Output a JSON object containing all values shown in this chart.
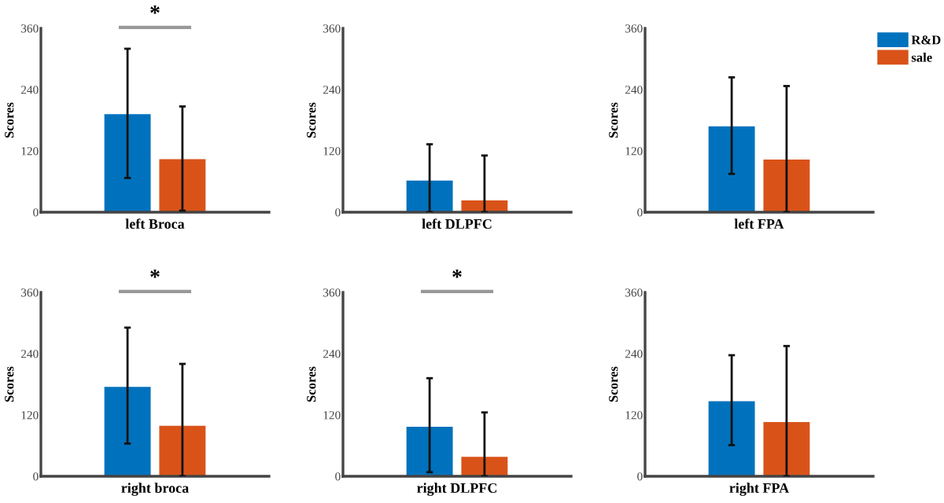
{
  "chart_data": [
    {
      "type": "bar",
      "categories": [
        "left Broca"
      ],
      "ylabel": "Scores",
      "ylim": [
        0,
        360
      ],
      "yticks": [
        0,
        120,
        240,
        360
      ],
      "annotations": [
        "*"
      ],
      "legend": false,
      "series": [
        {
          "color": "#0072bd",
          "values": [
            192
          ],
          "errors": [
            [
              67,
              320
            ]
          ]
        },
        {
          "color": "#d95319",
          "values": [
            104
          ],
          "errors": [
            [
              3,
              207
            ]
          ]
        }
      ]
    },
    {
      "type": "bar",
      "categories": [
        "left DLPFC"
      ],
      "ylabel": "Scores",
      "ylim": [
        0,
        360
      ],
      "yticks": [
        0,
        120,
        240,
        360
      ],
      "legend": false,
      "series": [
        {
          "color": "#0072bd",
          "values": [
            62
          ],
          "errors": [
            [
              0,
              133
            ]
          ]
        },
        {
          "color": "#d95319",
          "values": [
            23
          ],
          "errors": [
            [
              0,
              111
            ]
          ]
        }
      ]
    },
    {
      "type": "bar",
      "categories": [
        "left FPA"
      ],
      "ylabel": "Scores",
      "ylim": [
        0,
        360
      ],
      "yticks": [
        0,
        120,
        240,
        360
      ],
      "legend": "top right",
      "series": [
        {
          "name": "R&D",
          "color": "#0072bd",
          "values": [
            168
          ],
          "errors": [
            [
              75,
              264
            ]
          ]
        },
        {
          "name": "sale",
          "color": "#d95319",
          "values": [
            103
          ],
          "errors": [
            [
              0,
              247
            ]
          ]
        }
      ]
    },
    {
      "type": "bar",
      "categories": [
        "right broca"
      ],
      "ylabel": "Scores",
      "ylim": [
        0,
        360
      ],
      "yticks": [
        0,
        120,
        240,
        360
      ],
      "annotations": [
        "*"
      ],
      "legend": false,
      "series": [
        {
          "color": "#0072bd",
          "values": [
            175
          ],
          "errors": [
            [
              64,
              291
            ]
          ]
        },
        {
          "color": "#d95319",
          "values": [
            99
          ],
          "errors": [
            [
              0,
              220
            ]
          ]
        }
      ]
    },
    {
      "type": "bar",
      "categories": [
        "right DLPFC"
      ],
      "ylabel": "Scores",
      "ylim": [
        0,
        360
      ],
      "yticks": [
        0,
        120,
        240,
        360
      ],
      "annotations": [
        "*"
      ],
      "legend": false,
      "series": [
        {
          "color": "#0072bd",
          "values": [
            97
          ],
          "errors": [
            [
              8,
              192
            ]
          ]
        },
        {
          "color": "#d95319",
          "values": [
            38
          ],
          "errors": [
            [
              0,
              125
            ]
          ]
        }
      ]
    },
    {
      "type": "bar",
      "categories": [
        "right FPA"
      ],
      "ylabel": "Scores",
      "ylim": [
        0,
        360
      ],
      "yticks": [
        0,
        120,
        240,
        360
      ],
      "legend": false,
      "series": [
        {
          "color": "#0072bd",
          "values": [
            147
          ],
          "errors": [
            [
              61,
              237
            ]
          ]
        },
        {
          "color": "#d95319",
          "values": [
            106
          ],
          "errors": [
            [
              0,
              255
            ]
          ]
        }
      ]
    }
  ]
}
